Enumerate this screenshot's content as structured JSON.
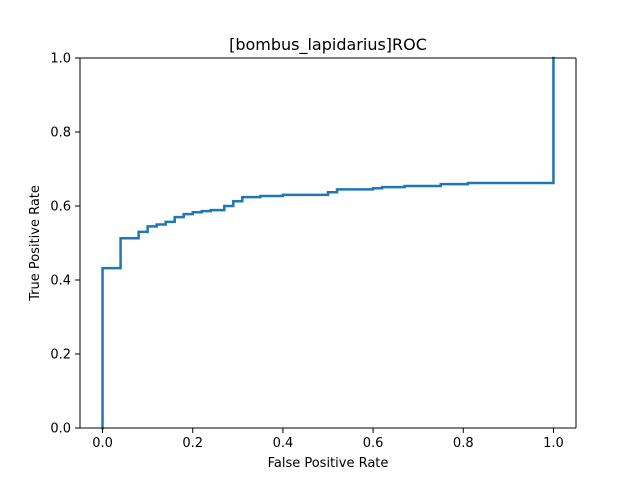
{
  "chart_data": {
    "type": "line",
    "title": "[bombus_lapidarius]ROC",
    "xlabel": "False Positive Rate",
    "ylabel": "True Positive Rate",
    "xlim": [
      -0.05,
      1.05
    ],
    "ylim": [
      0.0,
      1.0
    ],
    "x_ticks": [
      0.0,
      0.2,
      0.4,
      0.6,
      0.8,
      1.0
    ],
    "x_tick_labels": [
      "0.0",
      "0.2",
      "0.4",
      "0.6",
      "0.8",
      "1.0"
    ],
    "y_ticks": [
      0.0,
      0.2,
      0.4,
      0.6,
      0.8,
      1.0
    ],
    "y_tick_labels": [
      "0.0",
      "0.2",
      "0.4",
      "0.6",
      "0.8",
      "1.0"
    ],
    "grid": false,
    "legend": "none",
    "series": [
      {
        "color": "#1f77b4",
        "step": true,
        "x": [
          0.0,
          0.0,
          0.04,
          0.04,
          0.08,
          0.08,
          0.1,
          0.1,
          0.12,
          0.12,
          0.14,
          0.14,
          0.16,
          0.16,
          0.18,
          0.18,
          0.2,
          0.2,
          0.22,
          0.22,
          0.24,
          0.24,
          0.27,
          0.27,
          0.29,
          0.29,
          0.31,
          0.31,
          0.35,
          0.35,
          0.4,
          0.4,
          0.5,
          0.5,
          0.52,
          0.52,
          0.6,
          0.6,
          0.62,
          0.62,
          0.67,
          0.67,
          0.75,
          0.75,
          0.81,
          0.81,
          1.0,
          1.0
        ],
        "y": [
          0.0,
          0.432,
          0.432,
          0.513,
          0.513,
          0.53,
          0.53,
          0.545,
          0.545,
          0.55,
          0.55,
          0.557,
          0.557,
          0.57,
          0.57,
          0.578,
          0.578,
          0.583,
          0.583,
          0.586,
          0.586,
          0.589,
          0.589,
          0.6,
          0.6,
          0.613,
          0.613,
          0.624,
          0.624,
          0.627,
          0.627,
          0.63,
          0.63,
          0.637,
          0.637,
          0.645,
          0.645,
          0.648,
          0.648,
          0.651,
          0.651,
          0.654,
          0.654,
          0.659,
          0.659,
          0.662,
          0.662,
          1.0
        ]
      }
    ]
  }
}
